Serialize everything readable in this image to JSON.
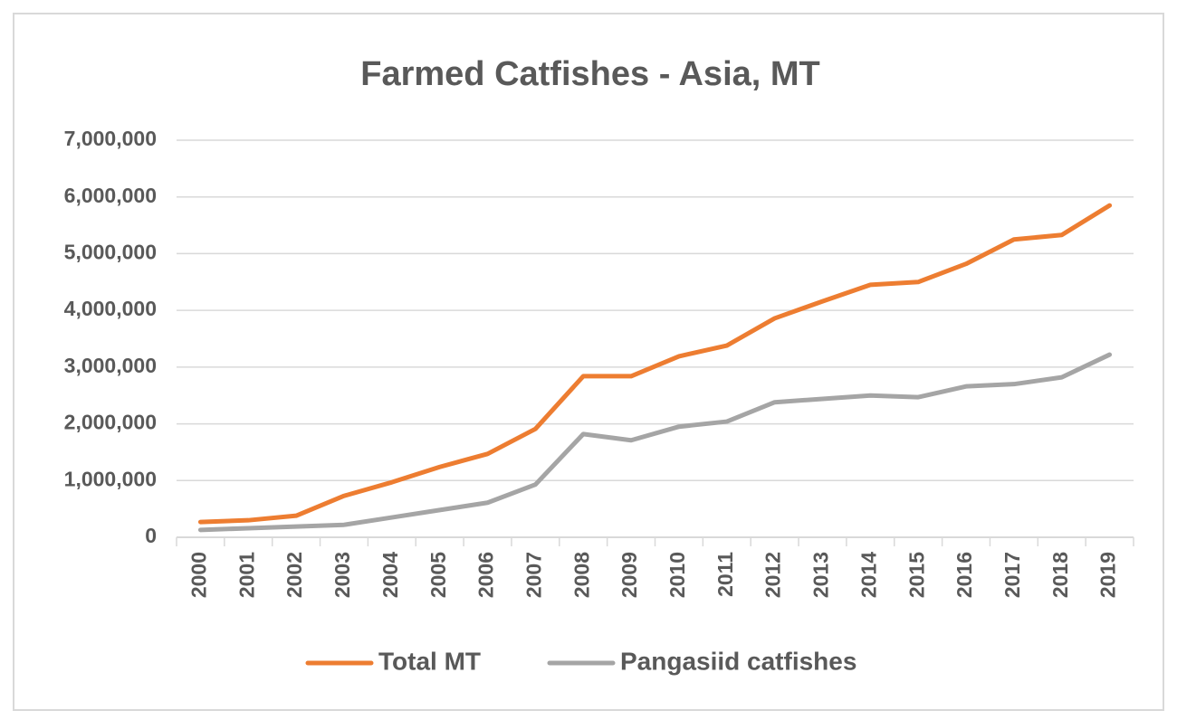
{
  "chart_data": {
    "type": "line",
    "title": "Farmed Catfishes - Asia, MT",
    "categories": [
      "2000",
      "2001",
      "2002",
      "2003",
      "2004",
      "2005",
      "2006",
      "2007",
      "2008",
      "2009",
      "2010",
      "2011",
      "2012",
      "2013",
      "2014",
      "2015",
      "2016",
      "2017",
      "2018",
      "2019"
    ],
    "series": [
      {
        "name": "Total MT",
        "color": "#ED7D31",
        "values": [
          270000,
          300000,
          380000,
          730000,
          970000,
          1240000,
          1470000,
          1910000,
          2840000,
          2840000,
          3190000,
          3380000,
          3860000,
          4160000,
          4450000,
          4500000,
          4820000,
          5250000,
          5330000,
          5850000
        ]
      },
      {
        "name": "Pangasiid catfishes",
        "color": "#A5A5A5",
        "values": [
          130000,
          160000,
          190000,
          220000,
          350000,
          480000,
          610000,
          930000,
          1820000,
          1710000,
          1950000,
          2040000,
          2380000,
          2440000,
          2500000,
          2470000,
          2660000,
          2700000,
          2820000,
          3220000
        ]
      }
    ],
    "ylim": [
      0,
      7000000
    ],
    "yticks": [
      0,
      {
        "value": 1000000,
        "label": "1,000,000"
      },
      {
        "value": 2000000,
        "label": "2,000,000"
      },
      {
        "value": 3000000,
        "label": "3,000,000"
      },
      {
        "value": 4000000,
        "label": "4,000,000"
      },
      {
        "value": 5000000,
        "label": "5,000,000"
      },
      {
        "value": 6000000,
        "label": "6,000,000"
      },
      {
        "value": 7000000,
        "label": "7,000,000"
      }
    ],
    "grid": true,
    "legend": "bottom"
  }
}
